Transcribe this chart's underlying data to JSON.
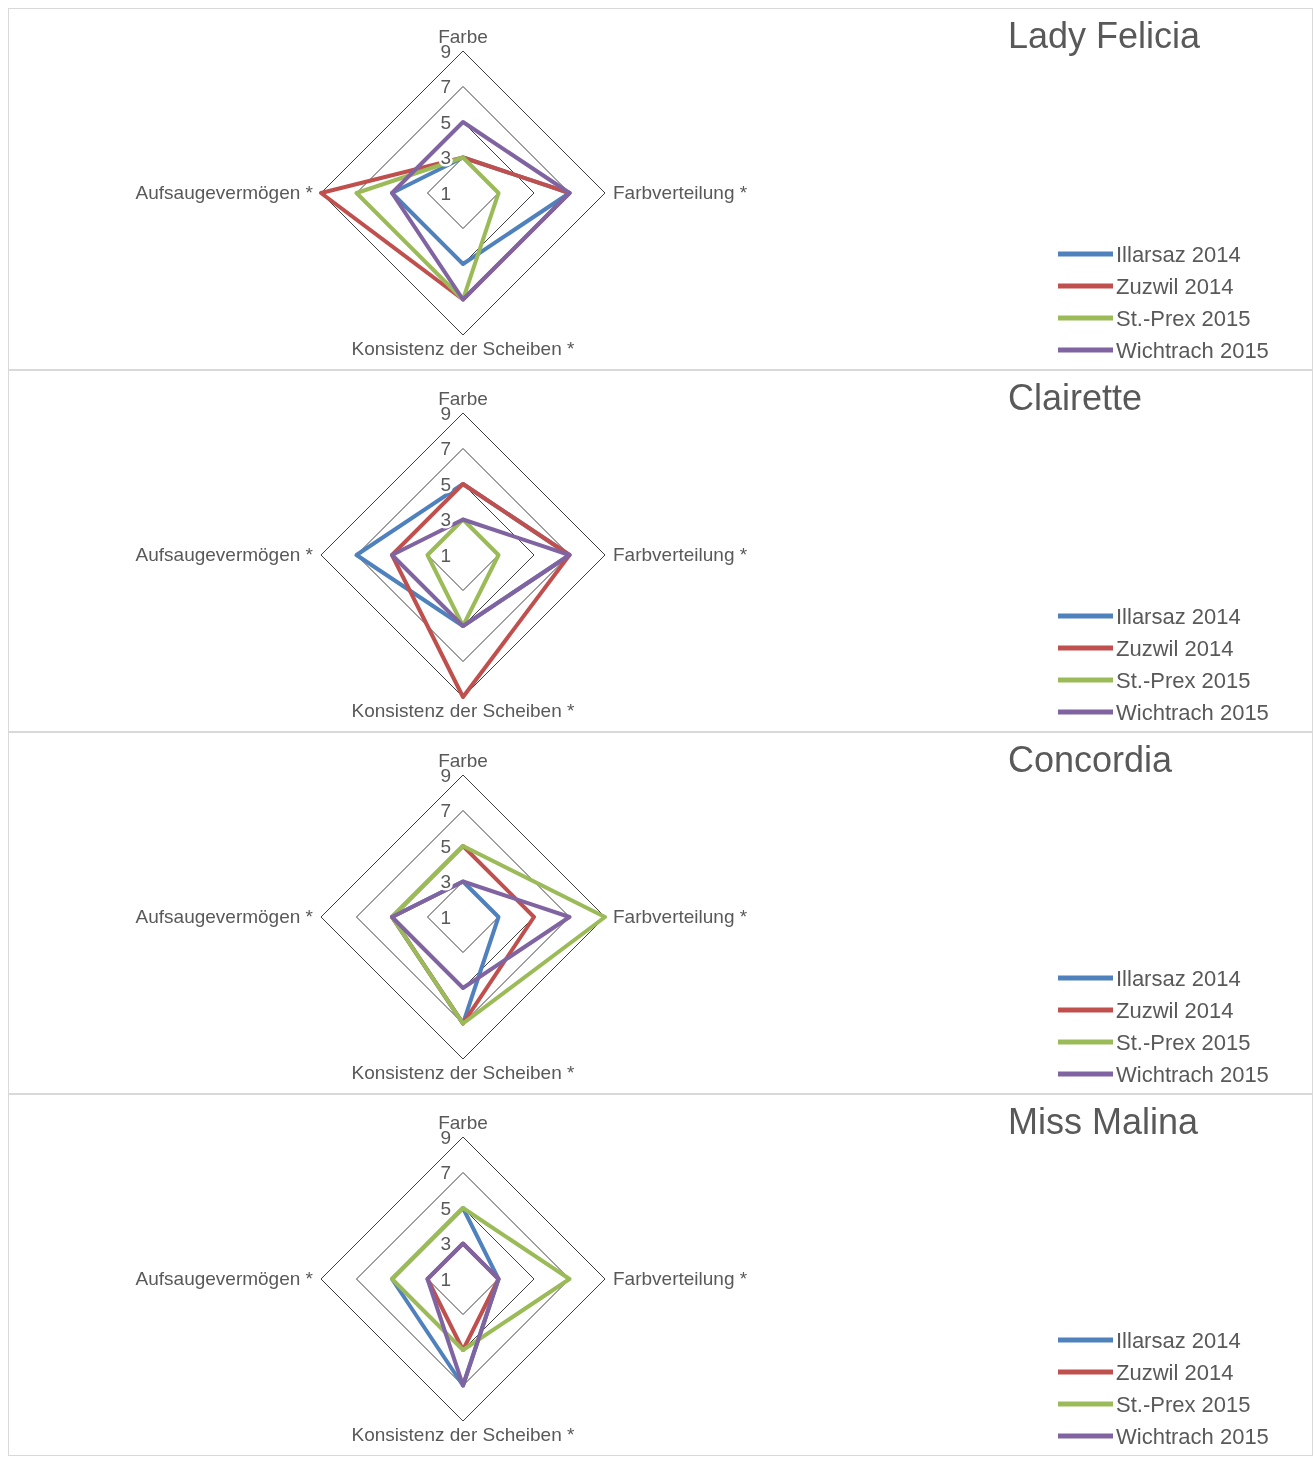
{
  "chart_data": [
    {
      "type": "radar",
      "title": "Lady Felicia",
      "categories": [
        "Farbe",
        "Farbverteilung *",
        "Konsistenz der Scheiben *",
        "Aufsaugevermögen *"
      ],
      "ylim": [
        1,
        9
      ],
      "yticks": [
        1,
        3,
        5,
        7,
        9
      ],
      "legend": "bottom right",
      "series": [
        {
          "name": "Illarsaz 2014",
          "color": "#4f81bd",
          "values": [
            3,
            7,
            5,
            5
          ]
        },
        {
          "name": "Zuzwil 2014",
          "color": "#c0504d",
          "values": [
            3,
            7,
            7,
            9
          ]
        },
        {
          "name": "St.-Prex 2015",
          "color": "#9bbb59",
          "values": [
            3,
            3,
            7,
            7
          ]
        },
        {
          "name": "Wichtrach 2015",
          "color": "#8064a2",
          "values": [
            5,
            7,
            7,
            5
          ]
        }
      ]
    },
    {
      "type": "radar",
      "title": "Clairette",
      "categories": [
        "Farbe",
        "Farbverteilung *",
        "Konsistenz der Scheiben *",
        "Aufsaugevermögen *"
      ],
      "ylim": [
        1,
        9
      ],
      "yticks": [
        1,
        3,
        5,
        7,
        9
      ],
      "legend": "bottom right",
      "series": [
        {
          "name": "Illarsaz 2014",
          "color": "#4f81bd",
          "values": [
            5,
            7,
            5,
            7
          ]
        },
        {
          "name": "Zuzwil 2014",
          "color": "#c0504d",
          "values": [
            5,
            7,
            9,
            5
          ]
        },
        {
          "name": "St.-Prex 2015",
          "color": "#9bbb59",
          "values": [
            3,
            3,
            5,
            3
          ]
        },
        {
          "name": "Wichtrach 2015",
          "color": "#8064a2",
          "values": [
            3,
            7,
            5,
            5
          ]
        }
      ]
    },
    {
      "type": "radar",
      "title": "Concordia",
      "categories": [
        "Farbe",
        "Farbverteilung *",
        "Konsistenz der Scheiben *",
        "Aufsaugevermögen *"
      ],
      "ylim": [
        1,
        9
      ],
      "yticks": [
        1,
        3,
        5,
        7,
        9
      ],
      "legend": "bottom right",
      "series": [
        {
          "name": "Illarsaz 2014",
          "color": "#4f81bd",
          "values": [
            3,
            3,
            7,
            5
          ]
        },
        {
          "name": "Zuzwil 2014",
          "color": "#c0504d",
          "values": [
            5,
            5,
            7,
            5
          ]
        },
        {
          "name": "St.-Prex 2015",
          "color": "#9bbb59",
          "values": [
            5,
            9,
            7,
            5
          ]
        },
        {
          "name": "Wichtrach 2015",
          "color": "#8064a2",
          "values": [
            3,
            7,
            5,
            5
          ]
        }
      ]
    },
    {
      "type": "radar",
      "title": "Miss Malina",
      "categories": [
        "Farbe",
        "Farbverteilung *",
        "Konsistenz der Scheiben *",
        "Aufsaugevermögen *"
      ],
      "ylim": [
        1,
        9
      ],
      "yticks": [
        1,
        3,
        5,
        7,
        9
      ],
      "legend": "bottom right",
      "series": [
        {
          "name": "Illarsaz 2014",
          "color": "#4f81bd",
          "values": [
            5,
            3,
            7,
            5
          ]
        },
        {
          "name": "Zuzwil 2014",
          "color": "#c0504d",
          "values": [
            3,
            3,
            5,
            3
          ]
        },
        {
          "name": "St.-Prex 2015",
          "color": "#9bbb59",
          "values": [
            5,
            7,
            5,
            5
          ]
        },
        {
          "name": "Wichtrach 2015",
          "color": "#8064a2",
          "values": [
            3,
            3,
            7,
            3
          ]
        }
      ]
    }
  ]
}
